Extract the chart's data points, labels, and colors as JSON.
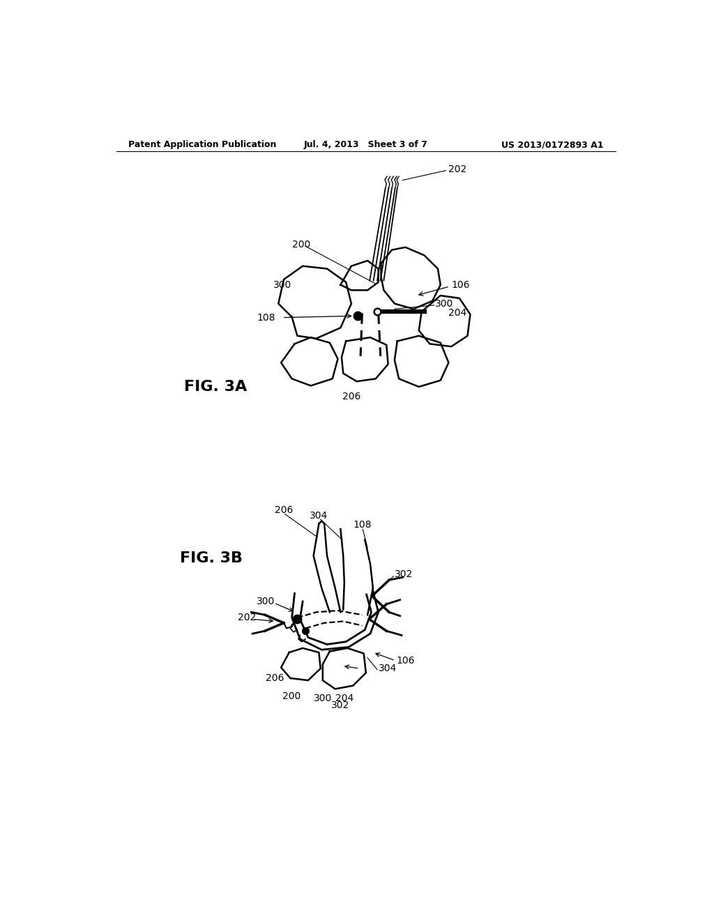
{
  "bg_color": "#ffffff",
  "header_left": "Patent Application Publication",
  "header_mid": "Jul. 4, 2013   Sheet 3 of 7",
  "header_right": "US 2013/0172893 A1",
  "fig3a_label": "FIG. 3A",
  "fig3b_label": "FIG. 3B",
  "text_color": "#000000",
  "label_fontsize": 10,
  "header_fontsize": 9,
  "fig_label_fontsize": 16
}
